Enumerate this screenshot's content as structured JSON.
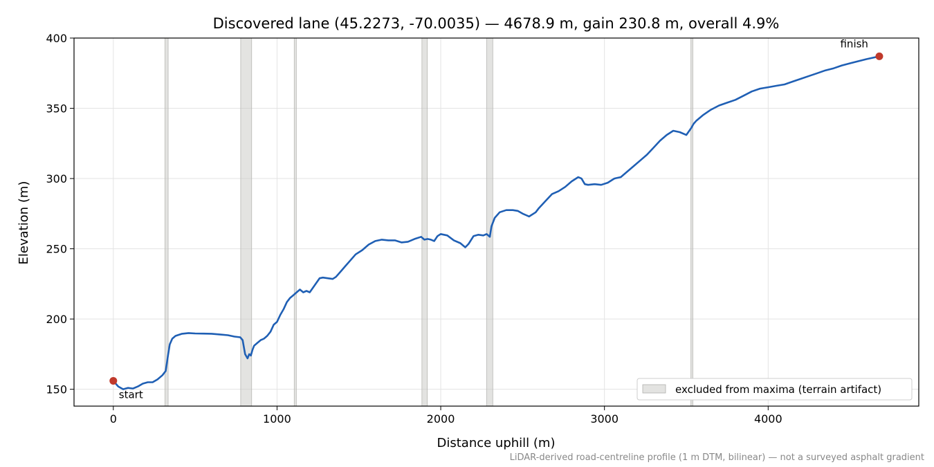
{
  "chart_data": {
    "type": "line",
    "title": "Discovered lane (45.2273, -70.0035) — 4678.9 m, gain 230.8 m, overall 4.9%",
    "xlabel": "Distance uphill (m)",
    "ylabel": "Elevation (m)",
    "xlim": [
      -240,
      4920
    ],
    "ylim": [
      138,
      400
    ],
    "xticks": [
      0,
      1000,
      2000,
      3000,
      4000
    ],
    "yticks": [
      150,
      200,
      250,
      300,
      350,
      400
    ],
    "grid": true,
    "legend": {
      "placement": "lower-right",
      "entries": [
        "excluded from maxima (terrain artifact)"
      ]
    },
    "series": [
      {
        "color": "#1f5fb4",
        "x": [
          0,
          30,
          60,
          90,
          120,
          150,
          180,
          210,
          240,
          270,
          300,
          320,
          335,
          345,
          360,
          380,
          420,
          460,
          500,
          550,
          600,
          650,
          700,
          740,
          775,
          790,
          805,
          820,
          830,
          840,
          850,
          860,
          880,
          900,
          920,
          940,
          960,
          980,
          1000,
          1020,
          1040,
          1060,
          1080,
          1100,
          1120,
          1140,
          1160,
          1180,
          1200,
          1230,
          1260,
          1280,
          1310,
          1340,
          1360,
          1390,
          1420,
          1450,
          1480,
          1520,
          1560,
          1600,
          1640,
          1680,
          1720,
          1760,
          1800,
          1840,
          1880,
          1900,
          1920,
          1940,
          1960,
          1980,
          2000,
          2040,
          2080,
          2120,
          2150,
          2170,
          2200,
          2230,
          2260,
          2280,
          2300,
          2310,
          2330,
          2360,
          2400,
          2440,
          2470,
          2500,
          2540,
          2580,
          2600,
          2640,
          2680,
          2720,
          2760,
          2800,
          2840,
          2860,
          2880,
          2900,
          2940,
          2980,
          3020,
          3060,
          3100,
          3140,
          3180,
          3220,
          3260,
          3300,
          3340,
          3380,
          3420,
          3460,
          3500,
          3530,
          3545,
          3560,
          3600,
          3650,
          3700,
          3750,
          3800,
          3850,
          3900,
          3950,
          4000,
          4050,
          4100,
          4150,
          4200,
          4250,
          4300,
          4350,
          4400,
          4450,
          4500,
          4550,
          4600,
          4678.9
        ],
        "y": [
          156,
          152,
          150,
          151,
          150.5,
          152,
          154,
          155,
          155,
          157,
          160,
          163,
          175,
          182,
          186,
          188,
          189.5,
          190,
          189.7,
          189.6,
          189.5,
          189,
          188.5,
          187.5,
          187,
          185,
          175,
          172,
          175,
          174,
          178,
          181,
          183,
          185,
          186,
          188,
          191,
          196,
          198,
          203,
          207,
          212,
          215,
          217,
          219,
          221,
          219,
          220,
          219,
          224,
          229,
          229.5,
          229,
          228.5,
          230,
          234,
          238,
          242,
          246,
          249,
          253,
          255.5,
          256.5,
          256,
          256,
          254.5,
          255,
          257,
          258.5,
          256.5,
          257,
          256.5,
          255.5,
          259,
          260.5,
          259.5,
          256,
          254,
          251,
          253.5,
          259,
          260,
          259.5,
          260.5,
          258.5,
          266,
          272,
          276,
          277.5,
          277.5,
          277,
          275,
          273,
          276,
          279,
          284,
          289,
          291,
          294,
          298,
          301,
          300,
          296,
          295.5,
          296,
          295.5,
          297,
          300,
          301,
          305,
          309,
          313,
          317,
          322,
          327,
          331,
          334,
          333,
          331,
          336,
          339,
          341,
          345,
          349,
          352,
          354,
          356,
          359,
          362,
          364,
          365,
          366,
          367,
          369,
          371,
          373,
          375,
          377,
          378.5,
          380.5,
          382,
          383.5,
          385,
          387
        ]
      }
    ],
    "excluded_ranges": [
      [
        315,
        335
      ],
      [
        778,
        845
      ],
      [
        1105,
        1118
      ],
      [
        1885,
        1918
      ],
      [
        2280,
        2318
      ],
      [
        3528,
        3540
      ]
    ],
    "markers": [
      {
        "x": 0,
        "y": 156,
        "label": "start",
        "color": "#c0392b"
      },
      {
        "x": 4678.9,
        "y": 387,
        "label": "finish",
        "color": "#c0392b"
      }
    ],
    "footnote": "LiDAR-derived road-centreline profile (1 m DTM, bilinear) — not a surveyed asphalt gradient"
  }
}
